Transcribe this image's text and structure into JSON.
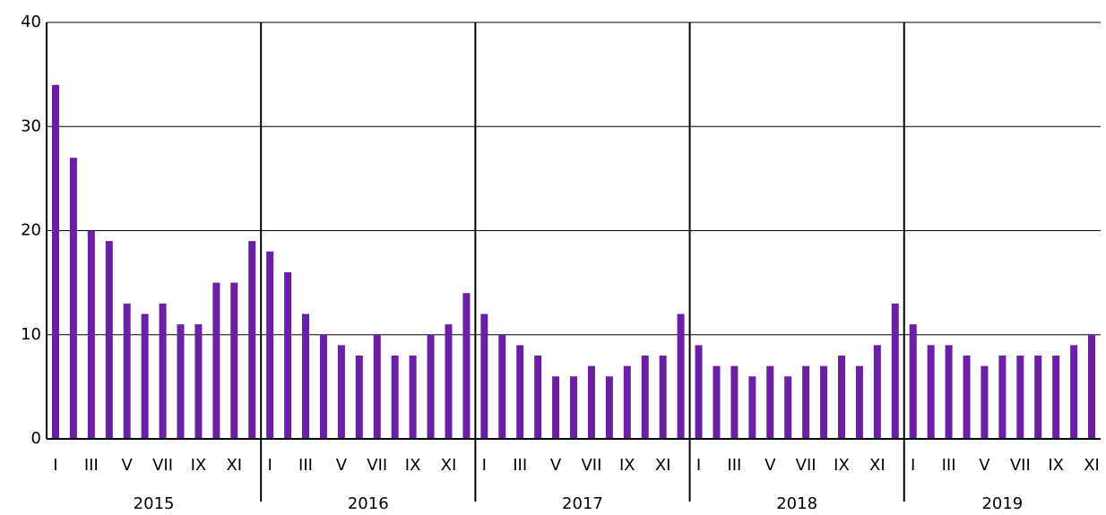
{
  "chart_data": {
    "type": "bar",
    "categories": [
      "I",
      null,
      "III",
      null,
      "V",
      null,
      "VII",
      null,
      "IX",
      null,
      "XI",
      null,
      "I",
      null,
      "III",
      null,
      "V",
      null,
      "VII",
      null,
      "IX",
      null,
      "XI",
      null,
      "I",
      null,
      "III",
      null,
      "V",
      null,
      "VII",
      null,
      "IX",
      null,
      "XI",
      null,
      "I",
      null,
      "III",
      null,
      "V",
      null,
      "VII",
      null,
      "IX",
      null,
      "XI",
      null,
      "I",
      null,
      "III",
      null,
      "V",
      null,
      "VII",
      null,
      "IX",
      null,
      "XI"
    ],
    "groups": [
      "2015",
      "2016",
      "2017",
      "2018",
      "2019"
    ],
    "values": [
      34,
      27,
      20,
      19,
      13,
      12,
      13,
      11,
      11,
      15,
      15,
      19,
      18,
      16,
      12,
      10,
      9,
      8,
      10,
      8,
      8,
      10,
      11,
      14,
      12,
      10,
      9,
      8,
      6,
      6,
      7,
      6,
      7,
      8,
      8,
      12,
      9,
      7,
      7,
      6,
      7,
      6,
      7,
      7,
      8,
      7,
      9,
      13,
      11,
      9,
      9,
      8,
      7,
      8,
      8,
      8,
      8,
      9,
      10
    ],
    "color": "#6a1fa5",
    "ylim": [
      0,
      40
    ],
    "yticks": [
      0,
      10,
      20,
      30,
      40
    ],
    "grid": true
  }
}
